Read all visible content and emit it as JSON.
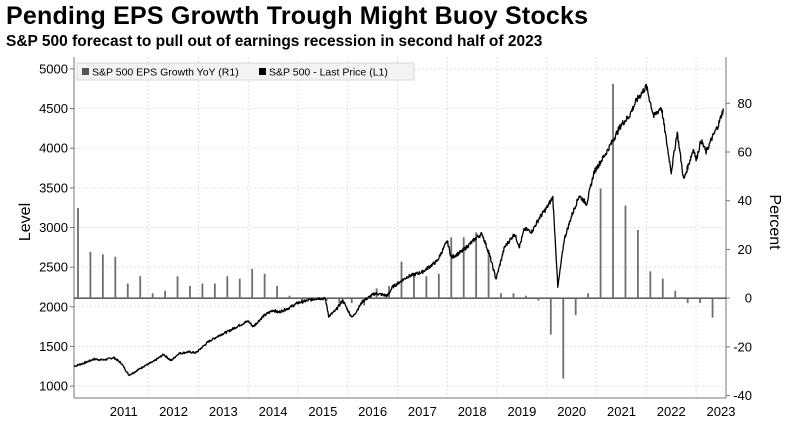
{
  "header": {
    "title": "Pending EPS Growth Trough Might Buoy Stocks",
    "subtitle": "S&P 500 forecast to pull out of earnings recession in second half of 2023"
  },
  "chart_data": {
    "type": "line+bar",
    "title": "Pending EPS Growth Trough Might Buoy Stocks",
    "subtitle": "S&P 500 forecast to pull out of earnings recession in second half of 2023",
    "xlabel": "",
    "ylabel_left": "Level",
    "ylabel_right": "Percent",
    "ylim_left": [
      850,
      5150
    ],
    "ylim_right": [
      -41,
      99
    ],
    "left_ticks": [
      1000,
      1500,
      2000,
      2500,
      3000,
      3500,
      4000,
      4500,
      5000
    ],
    "right_ticks": [
      -40,
      -20,
      0,
      20,
      40,
      60,
      80
    ],
    "x_range": [
      2010.5,
      2023.6
    ],
    "x_tick_labels": [
      "2011",
      "2012",
      "2013",
      "2014",
      "2015",
      "2016",
      "2017",
      "2018",
      "2019",
      "2020",
      "2021",
      "2022",
      "2023"
    ],
    "legend": [
      "S&P 500 EPS Growth YoY (R1)",
      "S&P 500 - Last Price (L1)"
    ],
    "legend_position": "top-left",
    "grid": true,
    "series": [
      {
        "name": "S&P 500 - Last Price (L1)",
        "axis": "left",
        "kind": "line",
        "points": [
          [
            2010.5,
            1250
          ],
          [
            2010.7,
            1290
          ],
          [
            2010.9,
            1340
          ],
          [
            2011.1,
            1330
          ],
          [
            2011.3,
            1360
          ],
          [
            2011.45,
            1290
          ],
          [
            2011.6,
            1140
          ],
          [
            2011.7,
            1170
          ],
          [
            2011.9,
            1250
          ],
          [
            2012.1,
            1310
          ],
          [
            2012.3,
            1400
          ],
          [
            2012.45,
            1320
          ],
          [
            2012.6,
            1410
          ],
          [
            2012.8,
            1430
          ],
          [
            2012.95,
            1420
          ],
          [
            2013.2,
            1560
          ],
          [
            2013.45,
            1650
          ],
          [
            2013.6,
            1690
          ],
          [
            2013.8,
            1760
          ],
          [
            2014.0,
            1820
          ],
          [
            2014.1,
            1750
          ],
          [
            2014.3,
            1880
          ],
          [
            2014.5,
            1960
          ],
          [
            2014.6,
            1930
          ],
          [
            2014.8,
            1980
          ],
          [
            2015.0,
            2050
          ],
          [
            2015.2,
            2080
          ],
          [
            2015.4,
            2110
          ],
          [
            2015.55,
            2100
          ],
          [
            2015.62,
            1880
          ],
          [
            2015.75,
            1950
          ],
          [
            2015.9,
            2080
          ],
          [
            2016.05,
            1900
          ],
          [
            2016.1,
            1870
          ],
          [
            2016.3,
            2070
          ],
          [
            2016.55,
            2170
          ],
          [
            2016.8,
            2140
          ],
          [
            2016.9,
            2250
          ],
          [
            2017.2,
            2380
          ],
          [
            2017.5,
            2440
          ],
          [
            2017.8,
            2580
          ],
          [
            2018.0,
            2830
          ],
          [
            2018.08,
            2620
          ],
          [
            2018.3,
            2700
          ],
          [
            2018.6,
            2880
          ],
          [
            2018.7,
            2920
          ],
          [
            2018.85,
            2650
          ],
          [
            2018.98,
            2350
          ],
          [
            2019.15,
            2750
          ],
          [
            2019.35,
            2920
          ],
          [
            2019.45,
            2760
          ],
          [
            2019.55,
            2980
          ],
          [
            2019.7,
            2950
          ],
          [
            2019.85,
            3120
          ],
          [
            2020.0,
            3250
          ],
          [
            2020.12,
            3380
          ],
          [
            2020.2,
            2500
          ],
          [
            2020.22,
            2240
          ],
          [
            2020.35,
            2850
          ],
          [
            2020.5,
            3150
          ],
          [
            2020.65,
            3400
          ],
          [
            2020.8,
            3300
          ],
          [
            2020.95,
            3700
          ],
          [
            2021.2,
            3950
          ],
          [
            2021.5,
            4300
          ],
          [
            2021.65,
            4400
          ],
          [
            2021.8,
            4600
          ],
          [
            2022.0,
            4780
          ],
          [
            2022.15,
            4400
          ],
          [
            2022.3,
            4520
          ],
          [
            2022.45,
            3900
          ],
          [
            2022.5,
            3700
          ],
          [
            2022.62,
            4200
          ],
          [
            2022.75,
            3600
          ],
          [
            2022.85,
            3800
          ],
          [
            2022.95,
            4000
          ],
          [
            2023.0,
            3850
          ],
          [
            2023.1,
            4100
          ],
          [
            2023.2,
            3950
          ],
          [
            2023.3,
            4100
          ],
          [
            2023.45,
            4300
          ],
          [
            2023.55,
            4500
          ]
        ]
      },
      {
        "name": "S&P 500 EPS Growth YoY (R1)",
        "axis": "right",
        "kind": "bar",
        "points": [
          [
            2010.58,
            37
          ],
          [
            2010.83,
            19
          ],
          [
            2011.08,
            18
          ],
          [
            2011.33,
            17
          ],
          [
            2011.58,
            6
          ],
          [
            2011.83,
            9
          ],
          [
            2012.08,
            2
          ],
          [
            2012.33,
            3
          ],
          [
            2012.58,
            9
          ],
          [
            2012.83,
            5
          ],
          [
            2013.08,
            6
          ],
          [
            2013.33,
            6
          ],
          [
            2013.58,
            9
          ],
          [
            2013.83,
            8
          ],
          [
            2014.08,
            12
          ],
          [
            2014.33,
            10
          ],
          [
            2014.58,
            5
          ],
          [
            2014.83,
            1
          ],
          [
            2015.08,
            -1
          ],
          [
            2015.33,
            -1
          ],
          [
            2015.58,
            -1
          ],
          [
            2015.83,
            -2
          ],
          [
            2016.08,
            -2
          ],
          [
            2016.33,
            -3
          ],
          [
            2016.58,
            4
          ],
          [
            2016.83,
            5
          ],
          [
            2017.08,
            15
          ],
          [
            2017.33,
            9
          ],
          [
            2017.58,
            9
          ],
          [
            2017.83,
            10
          ],
          [
            2018.08,
            25
          ],
          [
            2018.33,
            25
          ],
          [
            2018.58,
            27
          ],
          [
            2018.83,
            20
          ],
          [
            2019.08,
            2
          ],
          [
            2019.33,
            2
          ],
          [
            2019.58,
            1
          ],
          [
            2019.83,
            -1
          ],
          [
            2020.08,
            -15
          ],
          [
            2020.33,
            -33
          ],
          [
            2020.58,
            -7
          ],
          [
            2020.83,
            2
          ],
          [
            2021.08,
            45
          ],
          [
            2021.33,
            88
          ],
          [
            2021.58,
            38
          ],
          [
            2021.83,
            28
          ],
          [
            2022.08,
            11
          ],
          [
            2022.33,
            8
          ],
          [
            2022.58,
            3
          ],
          [
            2022.83,
            -2
          ],
          [
            2023.08,
            -2
          ],
          [
            2023.33,
            -8
          ]
        ]
      }
    ]
  }
}
